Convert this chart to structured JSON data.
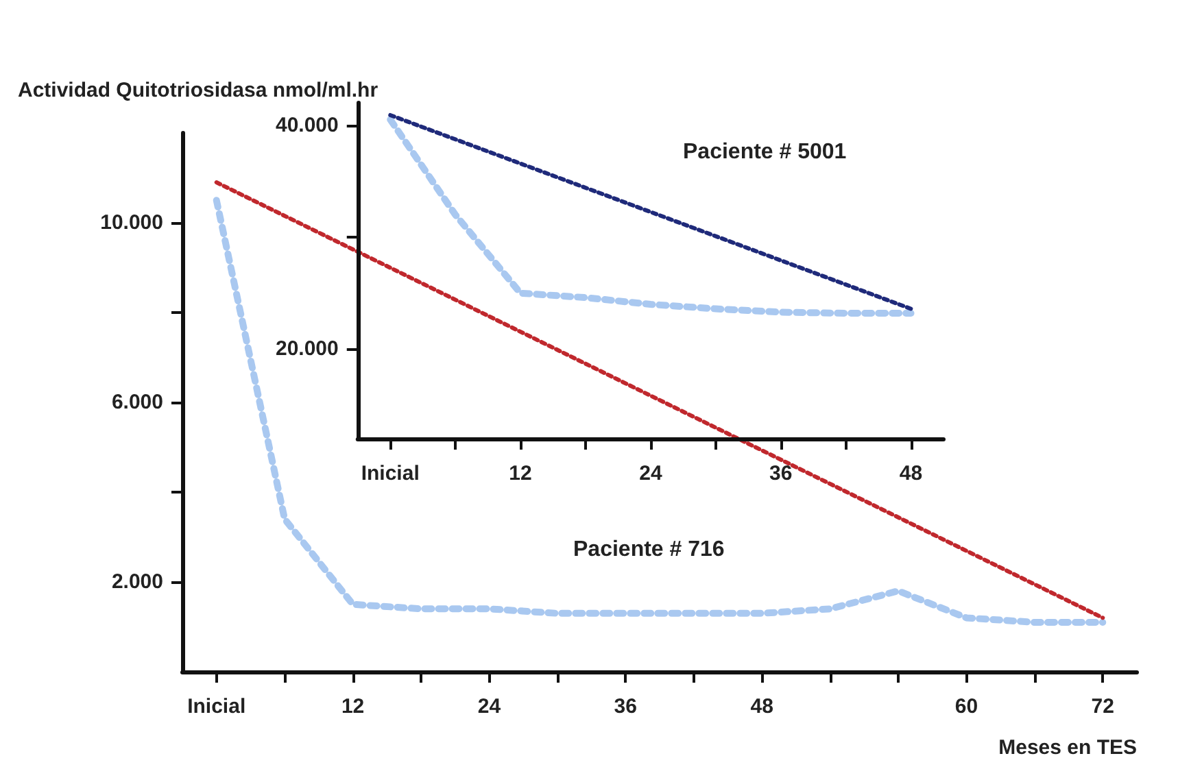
{
  "chart_data": [
    {
      "type": "line",
      "ylabel": "Actividad Quitotriosidasa nmol/ml.hr",
      "xlabel": "Meses en TES",
      "categories": [
        "Inicial",
        null,
        "12",
        null,
        "24",
        null,
        "36",
        null,
        "48",
        null,
        null,
        "60",
        null,
        "72"
      ],
      "series": [
        {
          "color": "#a9c8f0",
          "values": [
            10500,
            3400,
            1500,
            1400,
            1400,
            1300,
            1300,
            1300,
            1300,
            1400,
            1800,
            1200,
            1100,
            1100
          ]
        },
        {
          "color": "#c0282d",
          "values": [
            10900,
            null,
            null,
            null,
            null,
            null,
            null,
            null,
            null,
            null,
            null,
            null,
            null,
            1200
          ]
        }
      ],
      "ylim": [
        0,
        12000
      ],
      "yticks": [
        {
          "value": 2000,
          "label": "2.000"
        },
        {
          "value": 4000,
          "label": null
        },
        {
          "value": 6000,
          "label": "6.000"
        },
        {
          "value": 8000,
          "label": null
        },
        {
          "value": 10000,
          "label": "10.000"
        }
      ],
      "grid": false,
      "marker": "none",
      "line_style": "dotted",
      "annotations": [
        "Paciente # 716"
      ]
    },
    {
      "type": "line",
      "categories": [
        "Inicial",
        null,
        "12",
        null,
        "24",
        null,
        "36",
        null,
        "48"
      ],
      "series": [
        {
          "color": "#a9c8f0",
          "values": [
            40500,
            32000,
            25000,
            24600,
            24000,
            23600,
            23300,
            23200,
            23200
          ]
        },
        {
          "color": "#1f2a7a",
          "values": [
            40900,
            null,
            null,
            null,
            null,
            null,
            null,
            null,
            23600
          ]
        }
      ],
      "ylim": [
        12000,
        42000
      ],
      "yticks": [
        {
          "value": 20000,
          "label": "20.000"
        },
        {
          "value": 30000,
          "label": null
        },
        {
          "value": 40000,
          "label": "40.000"
        }
      ],
      "grid": false,
      "marker": "none",
      "line_style": "dotted",
      "annotations": [
        "Paciente # 5001"
      ]
    }
  ]
}
